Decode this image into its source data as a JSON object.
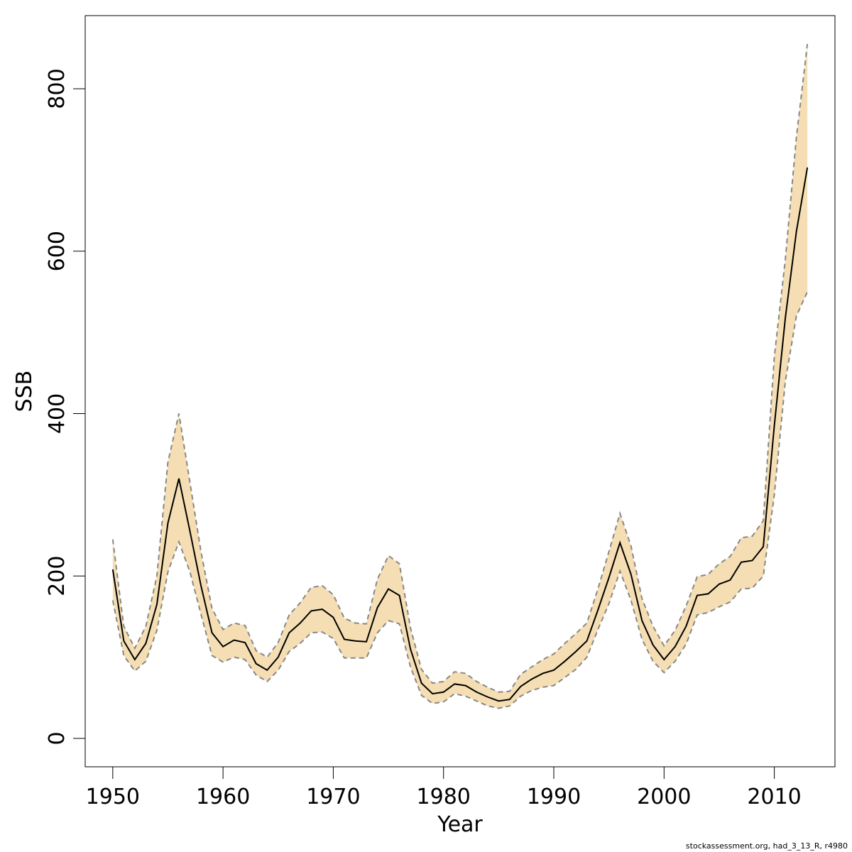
{
  "chart_data": {
    "type": "line",
    "xlabel": "Year",
    "ylabel": "SSB",
    "xlim": [
      1947.5,
      2015.5
    ],
    "ylim": [
      -35,
      890
    ],
    "x_ticks": [
      1950,
      1960,
      1970,
      1980,
      1990,
      2000,
      2010
    ],
    "y_ticks": [
      0,
      200,
      400,
      600,
      800
    ],
    "x": [
      1950,
      1951,
      1952,
      1953,
      1954,
      1955,
      1956,
      1957,
      1958,
      1959,
      1960,
      1961,
      1962,
      1963,
      1964,
      1965,
      1966,
      1967,
      1968,
      1969,
      1970,
      1971,
      1972,
      1973,
      1974,
      1975,
      1976,
      1977,
      1978,
      1979,
      1980,
      1981,
      1982,
      1983,
      1984,
      1985,
      1986,
      1987,
      1988,
      1989,
      1990,
      1991,
      1992,
      1993,
      1994,
      1995,
      1996,
      1997,
      1998,
      1999,
      2000,
      2001,
      2002,
      2003,
      2004,
      2005,
      2006,
      2007,
      2008,
      2009,
      2010,
      2011,
      2012,
      2013
    ],
    "series": [
      {
        "values": [
          208,
          120,
          97,
          117,
          165,
          265,
          320,
          255,
          188,
          130,
          113,
          121,
          118,
          92,
          84,
          100,
          130,
          142,
          157,
          159,
          149,
          122,
          120,
          119,
          161,
          184,
          176,
          110,
          68,
          55,
          57,
          67,
          65,
          57,
          51,
          46,
          48,
          64,
          73,
          80,
          84,
          95,
          107,
          120,
          158,
          198,
          241,
          202,
          145,
          115,
          97,
          113,
          138,
          176,
          178,
          190,
          195,
          217,
          219,
          236,
          385,
          518,
          624,
          703
        ],
        "ci_lower": [
          170,
          102,
          83,
          95,
          133,
          205,
          242,
          205,
          153,
          102,
          94,
          100,
          97,
          78,
          70,
          84,
          107,
          117,
          130,
          131,
          123,
          99,
          99,
          99,
          130,
          145,
          141,
          88,
          53,
          43,
          45,
          55,
          52,
          46,
          40,
          37,
          40,
          52,
          59,
          63,
          65,
          75,
          85,
          100,
          134,
          166,
          206,
          170,
          122,
          95,
          81,
          95,
          116,
          152,
          155,
          162,
          168,
          184,
          185,
          200,
          300,
          440,
          520,
          550
        ],
        "ci_upper": [
          245,
          138,
          111,
          138,
          200,
          340,
          400,
          315,
          230,
          160,
          134,
          142,
          139,
          108,
          100,
          118,
          152,
          167,
          186,
          188,
          177,
          148,
          142,
          141,
          196,
          225,
          215,
          136,
          85,
          68,
          70,
          82,
          80,
          70,
          63,
          57,
          58,
          79,
          88,
          97,
          104,
          117,
          129,
          142,
          184,
          230,
          277,
          237,
          172,
          138,
          114,
          133,
          163,
          199,
          202,
          215,
          224,
          247,
          249,
          268,
          470,
          590,
          740,
          855
        ]
      }
    ],
    "colors": {
      "band": "#f5deb3",
      "line": "#000000",
      "ci_line": "#888888",
      "frame": "#000000"
    },
    "grid": false,
    "legend": "none"
  },
  "footer": "stockassessment.org, had_3_13_R, r4980"
}
